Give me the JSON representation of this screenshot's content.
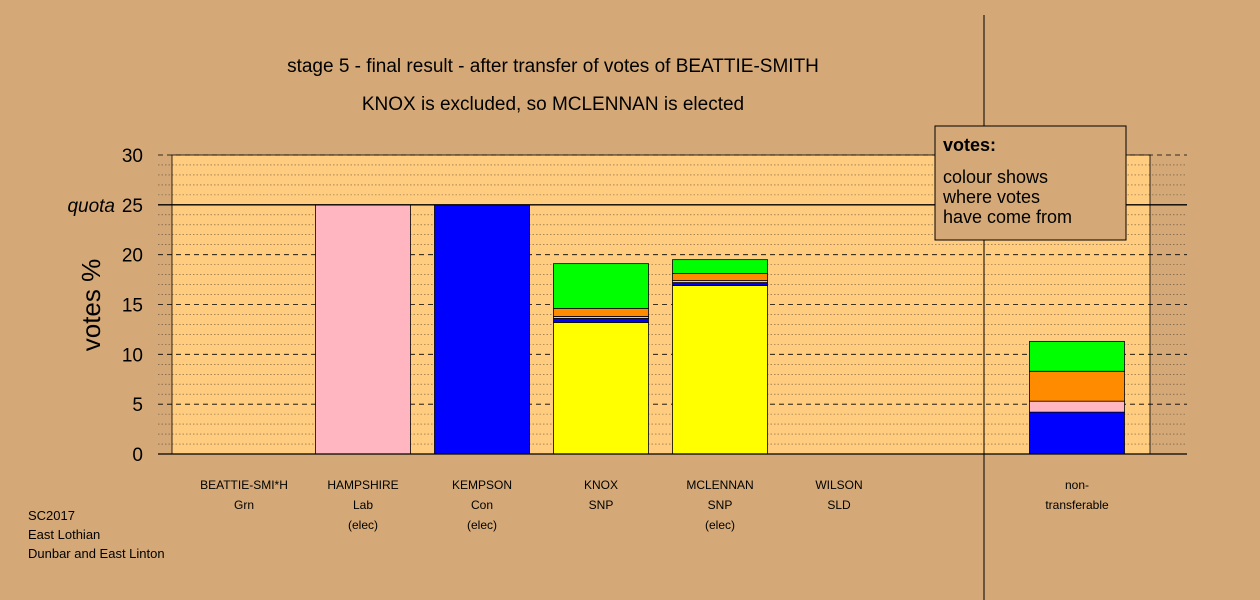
{
  "chart_data": {
    "type": "bar",
    "stacked": true,
    "title": "stage 5 - final result - after transfer of votes of BEATTIE-SMITH",
    "subtitle": "KNOX is excluded, so MCLENNAN is elected",
    "ylabel": "votes %",
    "ylim": [
      0,
      30
    ],
    "yticks": [
      0,
      5,
      10,
      15,
      20,
      25,
      30
    ],
    "quota": {
      "label": "quota",
      "value": 25
    },
    "grid": true,
    "legend": {
      "position": "top-right",
      "title": "votes:",
      "lines": [
        "colour shows",
        "where votes",
        "have come from"
      ]
    },
    "categories": [
      {
        "name": "BEATTIE-SMI*H",
        "party": "Grn",
        "note": ""
      },
      {
        "name": "HAMPSHIRE",
        "party": "Lab",
        "note": "(elec)"
      },
      {
        "name": "KEMPSON",
        "party": "Con",
        "note": "(elec)"
      },
      {
        "name": "KNOX",
        "party": "SNP",
        "note": ""
      },
      {
        "name": "MCLENNAN",
        "party": "SNP",
        "note": "(elec)"
      },
      {
        "name": "WILSON",
        "party": "SLD",
        "note": ""
      },
      {
        "name": "non-",
        "party": "transferable",
        "note": ""
      }
    ],
    "segments": [
      [],
      [
        {
          "source": "Lab",
          "color": "#ffb6c1",
          "value": 25.0
        }
      ],
      [
        {
          "source": "Con",
          "color": "#0000ff",
          "value": 25.0
        }
      ],
      [
        {
          "source": "SNP",
          "color": "#ffff00",
          "value": 13.2
        },
        {
          "source": "Con",
          "color": "#0000ff",
          "value": 0.4
        },
        {
          "source": "Lab",
          "color": "#ffb6c1",
          "value": 0.2
        },
        {
          "source": "SLD",
          "color": "#ff8c00",
          "value": 0.8
        },
        {
          "source": "Grn",
          "color": "#00ff00",
          "value": 4.5
        }
      ],
      [
        {
          "source": "SNP",
          "color": "#ffff00",
          "value": 16.9
        },
        {
          "source": "Con",
          "color": "#0000ff",
          "value": 0.3
        },
        {
          "source": "Lab",
          "color": "#ffb6c1",
          "value": 0.2
        },
        {
          "source": "SLD",
          "color": "#ff8c00",
          "value": 0.7
        },
        {
          "source": "Grn",
          "color": "#00ff00",
          "value": 1.4
        }
      ],
      [],
      [
        {
          "source": "Con",
          "color": "#0000ff",
          "value": 4.2
        },
        {
          "source": "Lab",
          "color": "#ffb6c1",
          "value": 1.1
        },
        {
          "source": "SLD",
          "color": "#ff8c00",
          "value": 3.0
        },
        {
          "source": "Grn",
          "color": "#00ff00",
          "value": 3.0
        }
      ]
    ]
  },
  "footer": {
    "line1": "SC2017",
    "line2": "East Lothian",
    "line3": "Dunbar and East Linton"
  },
  "colors": {
    "background": "#d4a977",
    "plot_area": "#ffcc80"
  }
}
